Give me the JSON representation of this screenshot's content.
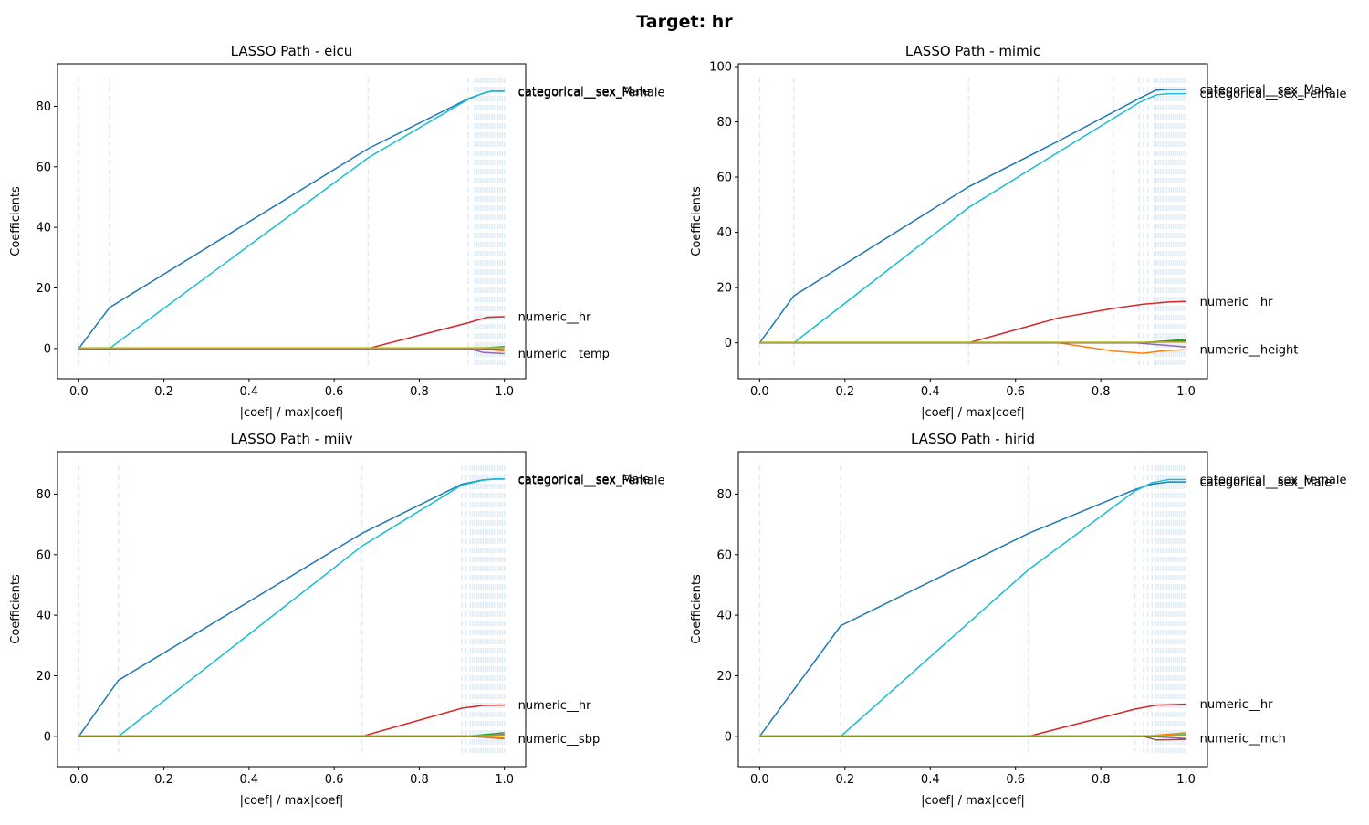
{
  "figure": {
    "title": "Target: hr"
  },
  "chart_data": [
    {
      "type": "line",
      "title": "LASSO Path - eicu",
      "xlabel": "|coef| / max|coef|",
      "ylabel": "Coefficients",
      "xlim": [
        -0.05,
        1.05
      ],
      "ylim": [
        -10,
        94
      ],
      "xticks": [
        "0.0",
        "0.2",
        "0.4",
        "0.6",
        "0.8",
        "1.0"
      ],
      "yticks": [
        "0",
        "20",
        "40",
        "60",
        "80"
      ],
      "xtick_values": [
        0,
        0.2,
        0.4,
        0.6,
        0.8,
        1.0
      ],
      "ytick_values": [
        0,
        20,
        40,
        60,
        80
      ],
      "vlines": [
        0.0,
        0.072,
        0.68,
        0.915,
        0.93,
        0.935,
        0.94,
        0.945,
        0.95,
        0.955,
        0.96,
        0.965,
        0.97,
        0.975,
        0.98,
        0.985,
        0.99,
        0.995,
        1.0
      ],
      "series": [
        {
          "name": "categorical__sex_Male",
          "color": "#1f77b4",
          "x": [
            0,
            0.072,
            0.68,
            0.915,
            0.95,
            0.97,
            1.0
          ],
          "y": [
            0,
            13.5,
            66,
            82.5,
            84.3,
            85,
            85
          ]
        },
        {
          "name": "categorical__sex_Female",
          "color": "#17becf",
          "x": [
            0,
            0.072,
            0.68,
            0.915,
            0.95,
            0.97,
            1.0
          ],
          "y": [
            0,
            0,
            63,
            82.3,
            84.3,
            85,
            85
          ]
        },
        {
          "name": "numeric__hr",
          "color": "#d62728",
          "x": [
            0,
            0.68,
            0.915,
            0.96,
            1.0
          ],
          "y": [
            0,
            0,
            8.5,
            10.3,
            10.5
          ]
        },
        {
          "name": "numeric__temp",
          "color": "#9467bd",
          "x": [
            0,
            0.915,
            0.95,
            1.0
          ],
          "y": [
            0,
            0,
            -1.3,
            -1.7
          ]
        },
        {
          "color": "#ff7f0e",
          "x": [
            0,
            0.93,
            1.0
          ],
          "y": [
            0,
            0,
            -0.8
          ]
        },
        {
          "color": "#2ca02c",
          "x": [
            0,
            0.93,
            1.0
          ],
          "y": [
            0,
            0,
            0.6
          ]
        },
        {
          "color": "#8c564b",
          "x": [
            0,
            0.94,
            1.0
          ],
          "y": [
            0,
            0,
            -0.4
          ]
        },
        {
          "color": "#bcbd22",
          "x": [
            0,
            1.0
          ],
          "y": [
            0.2,
            0.2
          ]
        }
      ],
      "labels": [
        {
          "text": "categorical__sex_Male",
          "y": 85
        },
        {
          "text": "categorical__sex_Female",
          "y": 84.6
        },
        {
          "text": "numeric__hr",
          "y": 10.5
        },
        {
          "text": "numeric__temp",
          "y": -1.7
        }
      ]
    },
    {
      "type": "line",
      "title": "LASSO Path - mimic",
      "xlabel": "|coef| / max|coef|",
      "ylabel": "Coefficients",
      "xlim": [
        -0.05,
        1.05
      ],
      "ylim": [
        -13,
        101
      ],
      "xticks": [
        "0.0",
        "0.2",
        "0.4",
        "0.6",
        "0.8",
        "1.0"
      ],
      "yticks": [
        "0",
        "20",
        "40",
        "60",
        "80",
        "100"
      ],
      "xtick_values": [
        0,
        0.2,
        0.4,
        0.6,
        0.8,
        1.0
      ],
      "ytick_values": [
        0,
        20,
        40,
        60,
        80,
        100
      ],
      "vlines": [
        0.0,
        0.08,
        0.49,
        0.7,
        0.83,
        0.89,
        0.9,
        0.91,
        0.925,
        0.93,
        0.935,
        0.94,
        0.945,
        0.95,
        0.955,
        0.96,
        0.965,
        0.97,
        0.975,
        0.98,
        0.985,
        0.99,
        0.995,
        1.0
      ],
      "series": [
        {
          "name": "categorical__sex_Male",
          "color": "#1f77b4",
          "x": [
            0,
            0.08,
            0.49,
            0.7,
            0.89,
            0.93,
            0.96,
            1.0
          ],
          "y": [
            0,
            17,
            56.5,
            73,
            88.5,
            91.5,
            91.8,
            91.8
          ]
        },
        {
          "name": "categorical__sex_Female",
          "color": "#17becf",
          "x": [
            0,
            0.08,
            0.49,
            0.7,
            0.89,
            0.93,
            0.96,
            1.0
          ],
          "y": [
            0,
            0,
            49,
            69,
            87,
            89.8,
            90.2,
            90.2
          ]
        },
        {
          "name": "numeric__hr",
          "color": "#d62728",
          "x": [
            0,
            0.49,
            0.7,
            0.83,
            0.9,
            0.96,
            1.0
          ],
          "y": [
            0,
            0,
            9,
            12.5,
            14,
            14.8,
            15
          ]
        },
        {
          "name": "numeric__height",
          "color": "#ff7f0e",
          "x": [
            0,
            0.7,
            0.83,
            0.9,
            0.95,
            1.0
          ],
          "y": [
            0,
            0,
            -3,
            -3.8,
            -2.8,
            -2.5
          ]
        },
        {
          "color": "#9467bd",
          "x": [
            0,
            0.88,
            1.0
          ],
          "y": [
            0,
            0,
            -1.5
          ]
        },
        {
          "color": "#2ca02c",
          "x": [
            0,
            0.89,
            1.0
          ],
          "y": [
            0,
            0,
            1.2
          ]
        },
        {
          "color": "#8c564b",
          "x": [
            0,
            0.9,
            1.0
          ],
          "y": [
            0,
            0,
            0.7
          ]
        },
        {
          "color": "#bcbd22",
          "x": [
            0,
            1.0
          ],
          "y": [
            0.2,
            0.2
          ]
        }
      ],
      "labels": [
        {
          "text": "categorical__sex_Male",
          "y": 91.8
        },
        {
          "text": "categorical__sex_Female",
          "y": 90.2
        },
        {
          "text": "numeric__hr",
          "y": 15
        },
        {
          "text": "numeric__height",
          "y": -2.5
        }
      ]
    },
    {
      "type": "line",
      "title": "LASSO Path - miiv",
      "xlabel": "|coef| / max|coef|",
      "ylabel": "Coefficients",
      "xlim": [
        -0.05,
        1.05
      ],
      "ylim": [
        -10,
        94
      ],
      "xticks": [
        "0.0",
        "0.2",
        "0.4",
        "0.6",
        "0.8",
        "1.0"
      ],
      "yticks": [
        "0",
        "20",
        "40",
        "60",
        "80"
      ],
      "xtick_values": [
        0,
        0.2,
        0.4,
        0.6,
        0.8,
        1.0
      ],
      "ytick_values": [
        0,
        20,
        40,
        60,
        80
      ],
      "vlines": [
        0.0,
        0.093,
        0.665,
        0.9,
        0.91,
        0.92,
        0.925,
        0.93,
        0.935,
        0.94,
        0.945,
        0.95,
        0.955,
        0.96,
        0.965,
        0.97,
        0.975,
        0.98,
        0.985,
        0.99,
        0.995,
        1.0
      ],
      "series": [
        {
          "name": "categorical__sex_Male",
          "color": "#1f77b4",
          "x": [
            0,
            0.093,
            0.665,
            0.9,
            0.95,
            0.98,
            1.0
          ],
          "y": [
            0,
            18.5,
            67,
            83.3,
            84.7,
            85,
            85
          ]
        },
        {
          "name": "categorical__sex_Female",
          "color": "#17becf",
          "x": [
            0,
            0.093,
            0.665,
            0.9,
            0.95,
            0.98,
            1.0
          ],
          "y": [
            0,
            0,
            62.8,
            83,
            84.6,
            85,
            85
          ]
        },
        {
          "name": "numeric__hr",
          "color": "#d62728",
          "x": [
            0,
            0.665,
            0.9,
            0.95,
            1.0
          ],
          "y": [
            0,
            0,
            9.3,
            10.2,
            10.3
          ]
        },
        {
          "name": "numeric__sbp",
          "color": "#9467bd",
          "x": [
            0,
            0.92,
            1.0
          ],
          "y": [
            0,
            0,
            -0.8
          ]
        },
        {
          "color": "#ff7f0e",
          "x": [
            0,
            0.92,
            1.0
          ],
          "y": [
            0,
            0,
            -0.5
          ]
        },
        {
          "color": "#2ca02c",
          "x": [
            0,
            0.91,
            1.0
          ],
          "y": [
            0,
            0,
            1.2
          ]
        },
        {
          "color": "#8c564b",
          "x": [
            0,
            0.93,
            1.0
          ],
          "y": [
            0,
            0,
            0.6
          ]
        },
        {
          "color": "#bcbd22",
          "x": [
            0,
            1.0
          ],
          "y": [
            0.2,
            0.2
          ]
        }
      ],
      "labels": [
        {
          "text": "categorical__sex_Male",
          "y": 85
        },
        {
          "text": "categorical__sex_Female",
          "y": 84.6
        },
        {
          "text": "numeric__hr",
          "y": 10.3
        },
        {
          "text": "numeric__sbp",
          "y": -0.8
        }
      ]
    },
    {
      "type": "line",
      "title": "LASSO Path - hirid",
      "xlabel": "|coef| / max|coef|",
      "ylabel": "Coefficients",
      "xlim": [
        -0.05,
        1.05
      ],
      "ylim": [
        -10,
        94
      ],
      "xticks": [
        "0.0",
        "0.2",
        "0.4",
        "0.6",
        "0.8",
        "1.0"
      ],
      "yticks": [
        "0",
        "20",
        "40",
        "60",
        "80"
      ],
      "xtick_values": [
        0,
        0.2,
        0.4,
        0.6,
        0.8,
        1.0
      ],
      "ytick_values": [
        0,
        20,
        40,
        60,
        80
      ],
      "vlines": [
        0.0,
        0.19,
        0.63,
        0.88,
        0.9,
        0.91,
        0.92,
        0.93,
        0.935,
        0.94,
        0.945,
        0.95,
        0.955,
        0.96,
        0.965,
        0.97,
        0.975,
        0.98,
        0.985,
        0.99,
        0.995,
        1.0
      ],
      "series": [
        {
          "name": "categorical__sex_Male",
          "color": "#1f77b4",
          "x": [
            0,
            0.19,
            0.63,
            0.88,
            0.92,
            0.96,
            1.0
          ],
          "y": [
            0,
            36.5,
            67,
            81.5,
            83.3,
            84,
            84
          ]
        },
        {
          "name": "categorical__sex_Female",
          "color": "#17becf",
          "x": [
            0,
            0.19,
            0.63,
            0.88,
            0.92,
            0.96,
            1.0
          ],
          "y": [
            0,
            0,
            55,
            81,
            83.8,
            84.8,
            84.8
          ]
        },
        {
          "name": "numeric__hr",
          "color": "#d62728",
          "x": [
            0,
            0.63,
            0.88,
            0.93,
            1.0
          ],
          "y": [
            0,
            0,
            9,
            10.3,
            10.6
          ]
        },
        {
          "name": "numeric__mch",
          "color": "#9467bd",
          "x": [
            0,
            0.91,
            1.0
          ],
          "y": [
            0,
            0,
            -0.7
          ]
        },
        {
          "color": "#ff7f0e",
          "x": [
            0,
            0.9,
            1.0
          ],
          "y": [
            0,
            0,
            1.2
          ]
        },
        {
          "color": "#8c564b",
          "x": [
            0,
            0.9,
            0.93,
            1.0
          ],
          "y": [
            0,
            0,
            -1.2,
            -1.0
          ]
        },
        {
          "color": "#2ca02c",
          "x": [
            0,
            0.92,
            1.0
          ],
          "y": [
            0,
            0,
            0.6
          ]
        },
        {
          "color": "#bcbd22",
          "x": [
            0,
            1.0
          ],
          "y": [
            0.2,
            0.2
          ]
        }
      ],
      "labels": [
        {
          "text": "categorical__sex_Female",
          "y": 84.8
        },
        {
          "text": "categorical__sex_Male",
          "y": 84
        },
        {
          "text": "numeric__hr",
          "y": 10.6
        },
        {
          "text": "numeric__mch",
          "y": -0.7
        }
      ]
    }
  ]
}
